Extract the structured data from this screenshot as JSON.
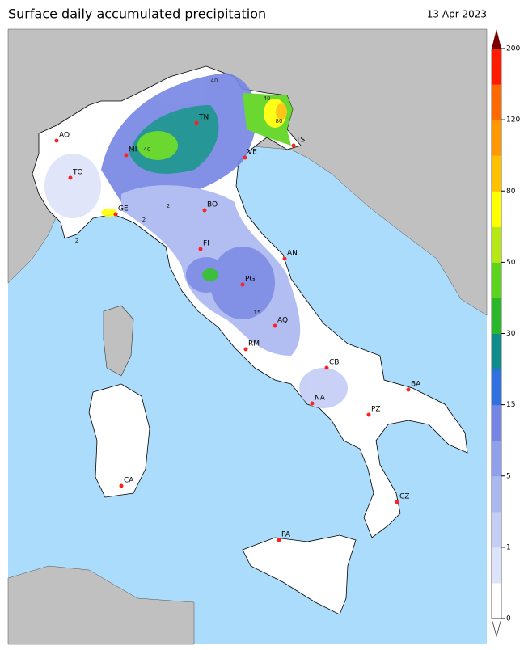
{
  "header": {
    "title": "Surface daily accumulated precipitation",
    "date": "13 Apr 2023"
  },
  "colorbar": {
    "ticks": [
      0,
      1,
      5,
      15,
      30,
      50,
      80,
      120,
      200
    ],
    "colors": [
      "#ffffff",
      "#dde3fa",
      "#c3cdf5",
      "#aab8f0",
      "#8f9fea",
      "#7585e3",
      "#2f6fe0",
      "#0f8b8b",
      "#2ab82a",
      "#5bd41b",
      "#b6e815",
      "#ffff00",
      "#ffc000",
      "#ff9800",
      "#ff6a00",
      "#ff1a00"
    ],
    "over_color": "#7a0000"
  },
  "cities": [
    "AO",
    "TO",
    "MI",
    "TN",
    "VE",
    "TS",
    "GE",
    "BO",
    "FI",
    "AN",
    "PG",
    "AQ",
    "RM",
    "CB",
    "BA",
    "NA",
    "PZ",
    "CA",
    "CZ",
    "PA"
  ],
  "contour_labels": [
    40,
    40,
    40,
    80,
    2,
    2,
    2,
    15
  ]
}
